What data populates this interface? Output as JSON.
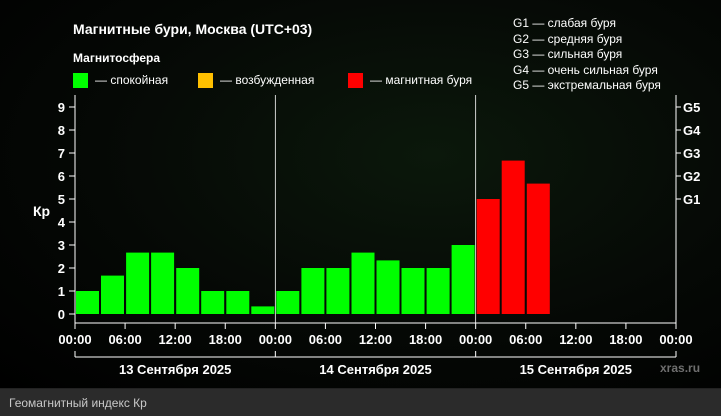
{
  "title": "Магнитные бури, Москва (UTC+03)",
  "subtitle": "Магнитосфера",
  "status_legend": [
    {
      "label": "— спокойная",
      "color": "#00ff00"
    },
    {
      "label": "— возбужденная",
      "color": "#ffc000"
    },
    {
      "label": "— магнитная буря",
      "color": "#ff0000"
    }
  ],
  "g_legend": [
    "G1 — слабая буря",
    "G2 — средняя буря",
    "G3 — сильная буря",
    "G4 — очень сильная буря",
    "G5 — экстремальная буря"
  ],
  "watermark": "xras.ru",
  "caption": "Геомагнитный индекс Кр",
  "chart_data": {
    "type": "bar",
    "ylabel": "Кр",
    "ylim": [
      0,
      9
    ],
    "y_ticks": [
      "0",
      "1",
      "2",
      "3",
      "4",
      "5",
      "6",
      "7",
      "8",
      "9"
    ],
    "right_ticks": [
      {
        "label": "G1",
        "y": 5
      },
      {
        "label": "G2",
        "y": 6
      },
      {
        "label": "G3",
        "y": 7
      },
      {
        "label": "G4",
        "y": 8
      },
      {
        "label": "G5",
        "y": 9
      }
    ],
    "x_ticks": [
      "00:00",
      "06:00",
      "12:00",
      "18:00",
      "00:00",
      "06:00",
      "12:00",
      "18:00",
      "00:00",
      "06:00",
      "12:00",
      "18:00",
      "00:00"
    ],
    "days": [
      "13 Сентября 2025",
      "14 Сентября 2025",
      "15 Сентября 2025"
    ],
    "values": [
      1.0,
      1.67,
      2.67,
      2.67,
      2.0,
      1.0,
      1.0,
      0.33,
      1.0,
      2.0,
      2.0,
      2.67,
      2.33,
      2.0,
      2.0,
      3.0,
      5.0,
      6.67,
      5.67
    ],
    "colors": [
      "#00ff00",
      "#00ff00",
      "#00ff00",
      "#00ff00",
      "#00ff00",
      "#00ff00",
      "#00ff00",
      "#00ff00",
      "#00ff00",
      "#00ff00",
      "#00ff00",
      "#00ff00",
      "#00ff00",
      "#00ff00",
      "#00ff00",
      "#00ff00",
      "#ff0000",
      "#ff0000",
      "#ff0000"
    ],
    "total_slots": 24,
    "grid": false
  }
}
